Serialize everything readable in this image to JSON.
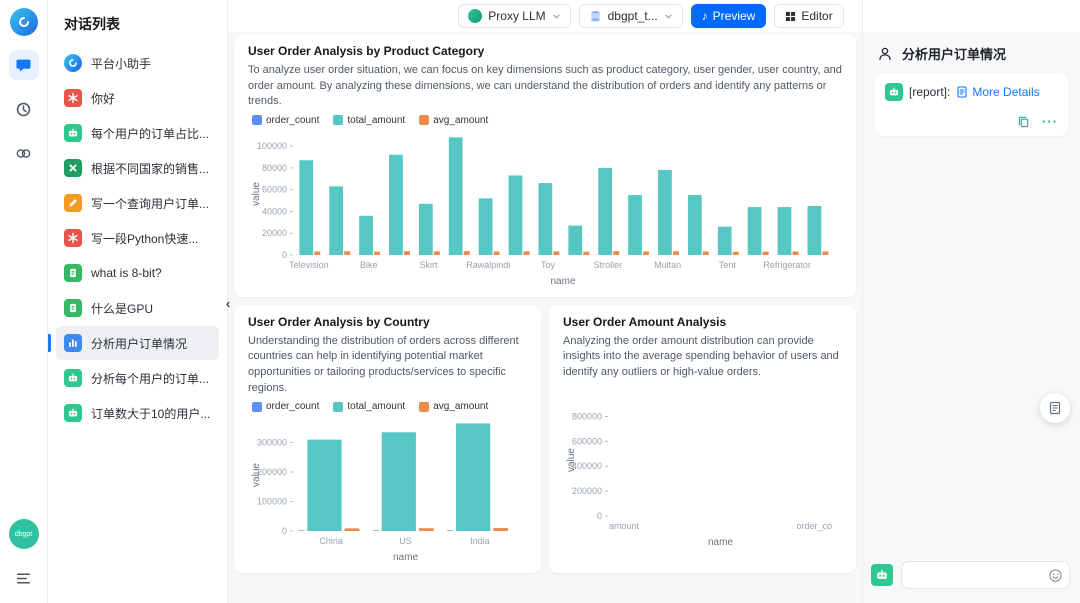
{
  "colors": {
    "accent": "#0069fe",
    "link": "#1677ff",
    "series_blue": "#5b8ff9",
    "series_teal": "#56c7c2",
    "series_orange": "#ee8a4e",
    "robot_green": "#2fc98f",
    "action_teal": "#13b2a2"
  },
  "rail": {
    "badge_label": "dbgpt"
  },
  "sidebar": {
    "title": "对话列表",
    "items": [
      {
        "label": "平台小助手",
        "icon": "logo",
        "color": "#2b7de9",
        "selected": false
      },
      {
        "label": "你好",
        "icon": "flower",
        "color": "#e8544a",
        "selected": false
      },
      {
        "label": "每个用户的订单占比...",
        "icon": "robot",
        "color": "#2fc98f",
        "selected": false
      },
      {
        "label": "根据不同国家的销售...",
        "icon": "excel",
        "color": "#1e9e62",
        "selected": false
      },
      {
        "label": "写一个查询用户订单...",
        "icon": "pencil",
        "color": "#f59a23",
        "selected": false
      },
      {
        "label": "写一段Python快速...",
        "icon": "flower",
        "color": "#e8544a",
        "selected": false
      },
      {
        "label": "what is 8-bit?",
        "icon": "doc",
        "color": "#38b865",
        "selected": false
      },
      {
        "label": "什么是GPU",
        "icon": "doc",
        "color": "#38b865",
        "selected": false
      },
      {
        "label": "分析用户订单情况",
        "icon": "chart",
        "color": "#3c89f0",
        "selected": true
      },
      {
        "label": "分析每个用户的订单...",
        "icon": "robot",
        "color": "#2fc98f",
        "selected": false
      },
      {
        "label": "订单数大于10的用户...",
        "icon": "robot",
        "color": "#2fc98f",
        "selected": false
      }
    ]
  },
  "toolbar": {
    "model_label": "Proxy LLM",
    "db_label": "dbgpt_t...",
    "preview_label": "Preview",
    "editor_label": "Editor"
  },
  "cards": [
    {
      "title": "User Order Analysis by Product Category",
      "description": "To analyze user order situation, we can focus on key dimensions such as product category, user gender, user country, and order amount. By analyzing these dimensions, we can understand the distribution of orders and identify any patterns or trends."
    },
    {
      "title": "User Order Analysis by Country",
      "description": "Understanding the distribution of orders across different countries can help in identifying potential market opportunities or tailoring products/services to specific regions."
    },
    {
      "title": "User Order Amount Analysis",
      "description": "Analyzing the order amount distribution can provide insights into the average spending behavior of users and identify any outliers or high-value orders."
    }
  ],
  "chart_data": [
    {
      "type": "bar",
      "title": "User Order Analysis by Product Category",
      "xlabel": "name",
      "ylabel": "value",
      "ylim": [
        0,
        112000
      ],
      "yticks": [
        0,
        20000,
        40000,
        60000,
        80000,
        100000
      ],
      "categories": [
        "Television",
        "",
        "Bike",
        "",
        "Skirt",
        "",
        "Rawalpindi",
        "",
        "Toy",
        "",
        "Stroller",
        "",
        "Multan",
        "",
        "Tent",
        "",
        "Refrigerator",
        ""
      ],
      "legend_position": "top-left",
      "series": [
        {
          "name": "order_count",
          "color": "#5b8ff9",
          "values": [
            120,
            90,
            60,
            130,
            70,
            150,
            80,
            100,
            95,
            40,
            110,
            75,
            105,
            78,
            42,
            60,
            62,
            65
          ]
        },
        {
          "name": "total_amount",
          "color": "#56c7c2",
          "values": [
            87000,
            63000,
            36000,
            92000,
            47000,
            108000,
            52000,
            73000,
            66000,
            27000,
            80000,
            55000,
            78000,
            55000,
            26000,
            44000,
            44000,
            45000
          ]
        },
        {
          "name": "avg_amount",
          "color": "#ee8a4e",
          "values": [
            3200,
            3400,
            3100,
            3500,
            3300,
            3600,
            3200,
            3400,
            3300,
            3000,
            3500,
            3200,
            3400,
            3300,
            3000,
            3100,
            3200,
            3300
          ]
        }
      ]
    },
    {
      "type": "bar",
      "title": "User Order Analysis by Country",
      "xlabel": "name",
      "ylabel": "value",
      "ylim": [
        0,
        380000
      ],
      "yticks": [
        0,
        100000,
        200000,
        300000
      ],
      "categories": [
        "China",
        "US",
        "India"
      ],
      "legend_position": "top-left",
      "series": [
        {
          "name": "order_count",
          "color": "#5b8ff9",
          "values": [
            2100,
            2200,
            2400
          ]
        },
        {
          "name": "total_amount",
          "color": "#56c7c2",
          "values": [
            310000,
            335000,
            365000
          ]
        },
        {
          "name": "avg_amount",
          "color": "#ee8a4e",
          "values": [
            9000,
            9500,
            10000
          ]
        }
      ]
    },
    {
      "type": "bar",
      "title": "User Order Amount Analysis",
      "xlabel": "name",
      "ylabel": "value",
      "ylim": [
        0,
        900000
      ],
      "yticks": [
        0,
        200000,
        400000,
        600000,
        800000
      ],
      "categories": [
        "amount",
        "order_co"
      ],
      "xtick_edges": true,
      "series": []
    }
  ],
  "right_panel": {
    "title": "分析用户订单情况",
    "message_prefix": "[report]:",
    "more_details": "More Details",
    "input_placeholder": ""
  }
}
